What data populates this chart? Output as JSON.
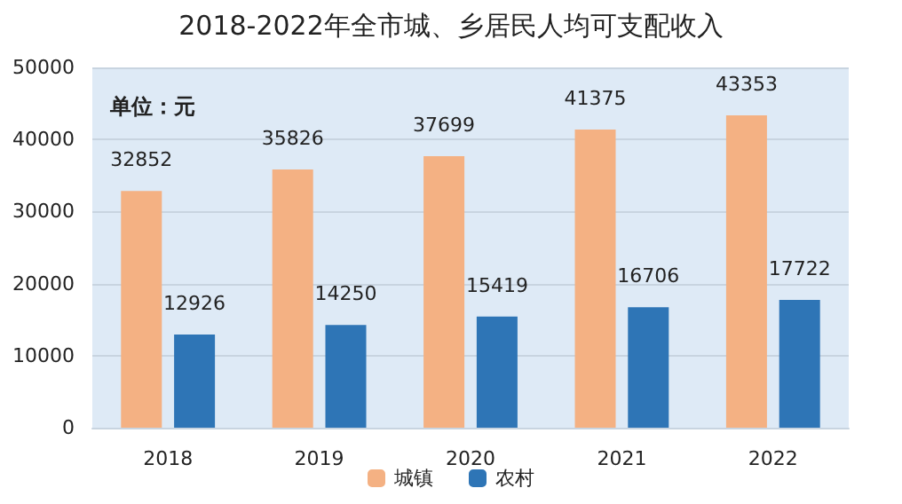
{
  "chart_data": {
    "type": "bar",
    "title": "2018-2022年全市城、乡居民人均可支配收入",
    "annotations": [
      "单位：元"
    ],
    "categories": [
      "2018",
      "2019",
      "2020",
      "2021",
      "2022"
    ],
    "series": [
      {
        "name": "城镇",
        "color": "#f4b183",
        "values": [
          32852,
          35826,
          37699,
          41375,
          43353
        ]
      },
      {
        "name": "农村",
        "color": "#2e75b6",
        "values": [
          12926,
          14250,
          15419,
          16706,
          17722
        ]
      }
    ],
    "ylim": [
      0,
      50000
    ],
    "yticks": [
      0,
      10000,
      20000,
      30000,
      40000,
      50000
    ],
    "grid": "y",
    "legend": "bottom",
    "data_labels": true
  }
}
